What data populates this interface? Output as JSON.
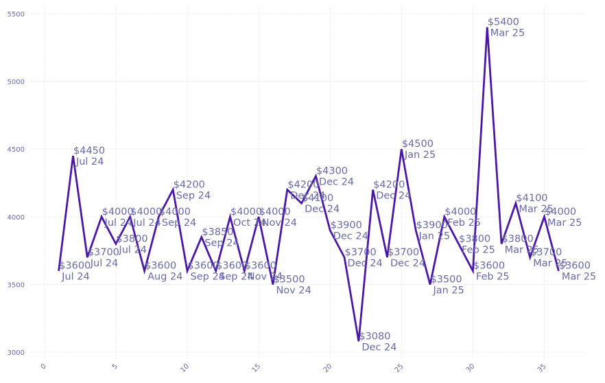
{
  "chart_data": {
    "type": "line",
    "title": "",
    "xlabel": "",
    "ylabel": "",
    "xlim": [
      -1,
      38
    ],
    "ylim": [
      2950,
      5560
    ],
    "xticks": [
      0,
      5,
      10,
      15,
      20,
      25,
      30,
      35
    ],
    "yticks": [
      3000,
      3500,
      4000,
      4500,
      5000,
      5500
    ],
    "grid": true,
    "legend": "none",
    "line_color": "#4a17a6",
    "label_color": "#6a6aa8",
    "points": [
      {
        "x": 1,
        "y": 3600,
        "price": "$3600",
        "month": "Jul 24"
      },
      {
        "x": 2,
        "y": 4450,
        "price": "$4450",
        "month": "Jul 24"
      },
      {
        "x": 3,
        "y": 3700,
        "price": "$3700",
        "month": "Jul 24"
      },
      {
        "x": 4,
        "y": 4000,
        "price": "$4000",
        "month": "Jul 24"
      },
      {
        "x": 5,
        "y": 3800,
        "price": "$3800",
        "month": "Jul 24"
      },
      {
        "x": 6,
        "y": 4000,
        "price": "$4000",
        "month": "Jul 24"
      },
      {
        "x": 7,
        "y": 3600,
        "price": "$3600",
        "month": "Aug 24"
      },
      {
        "x": 8,
        "y": 4000,
        "price": "$4000",
        "month": "Sep 24"
      },
      {
        "x": 9,
        "y": 4200,
        "price": "$4200",
        "month": "Sep 24"
      },
      {
        "x": 10,
        "y": 3600,
        "price": "$3600",
        "month": "Sep 24"
      },
      {
        "x": 11,
        "y": 3850,
        "price": "$3850",
        "month": "Sep 24"
      },
      {
        "x": 12,
        "y": 3600,
        "price": "$3600",
        "month": "Sep 24"
      },
      {
        "x": 13,
        "y": 4000,
        "price": "$4000",
        "month": "Oct 24"
      },
      {
        "x": 14,
        "y": 3600,
        "price": "$3600",
        "month": "Nov 24"
      },
      {
        "x": 15,
        "y": 4000,
        "price": "$4000",
        "month": "Nov 24"
      },
      {
        "x": 16,
        "y": 3500,
        "price": "$3500",
        "month": "Nov 24"
      },
      {
        "x": 17,
        "y": 4200,
        "price": "$4200",
        "month": "Dec 24"
      },
      {
        "x": 18,
        "y": 4100,
        "price": "$4100",
        "month": "Dec 24"
      },
      {
        "x": 19,
        "y": 4300,
        "price": "$4300",
        "month": "Dec 24"
      },
      {
        "x": 20,
        "y": 3900,
        "price": "$3900",
        "month": "Dec 24"
      },
      {
        "x": 21,
        "y": 3700,
        "price": "$3700",
        "month": "Dec 24"
      },
      {
        "x": 22,
        "y": 3080,
        "price": "$3080",
        "month": "Dec 24"
      },
      {
        "x": 23,
        "y": 4200,
        "price": "$4200",
        "month": "Dec 24"
      },
      {
        "x": 24,
        "y": 3700,
        "price": "$3700",
        "month": "Dec 24"
      },
      {
        "x": 25,
        "y": 4500,
        "price": "$4500",
        "month": "Jan 25"
      },
      {
        "x": 26,
        "y": 3900,
        "price": "$3900",
        "month": "Jan 25"
      },
      {
        "x": 27,
        "y": 3500,
        "price": "$3500",
        "month": "Jan 25"
      },
      {
        "x": 28,
        "y": 4000,
        "price": "$4000",
        "month": "Feb 25"
      },
      {
        "x": 29,
        "y": 3800,
        "price": "$3800",
        "month": "Feb 25"
      },
      {
        "x": 30,
        "y": 3600,
        "price": "$3600",
        "month": "Feb 25"
      },
      {
        "x": 31,
        "y": 5400,
        "price": "$5400",
        "month": "Mar 25"
      },
      {
        "x": 32,
        "y": 3800,
        "price": "$3800",
        "month": "Mar 25"
      },
      {
        "x": 33,
        "y": 4100,
        "price": "$4100",
        "month": "Mar 25"
      },
      {
        "x": 34,
        "y": 3700,
        "price": "$3700",
        "month": "Mar 25"
      },
      {
        "x": 35,
        "y": 4000,
        "price": "$4000",
        "month": "Mar 25"
      },
      {
        "x": 36,
        "y": 3600,
        "price": "$3600",
        "month": "Mar 25"
      }
    ]
  }
}
